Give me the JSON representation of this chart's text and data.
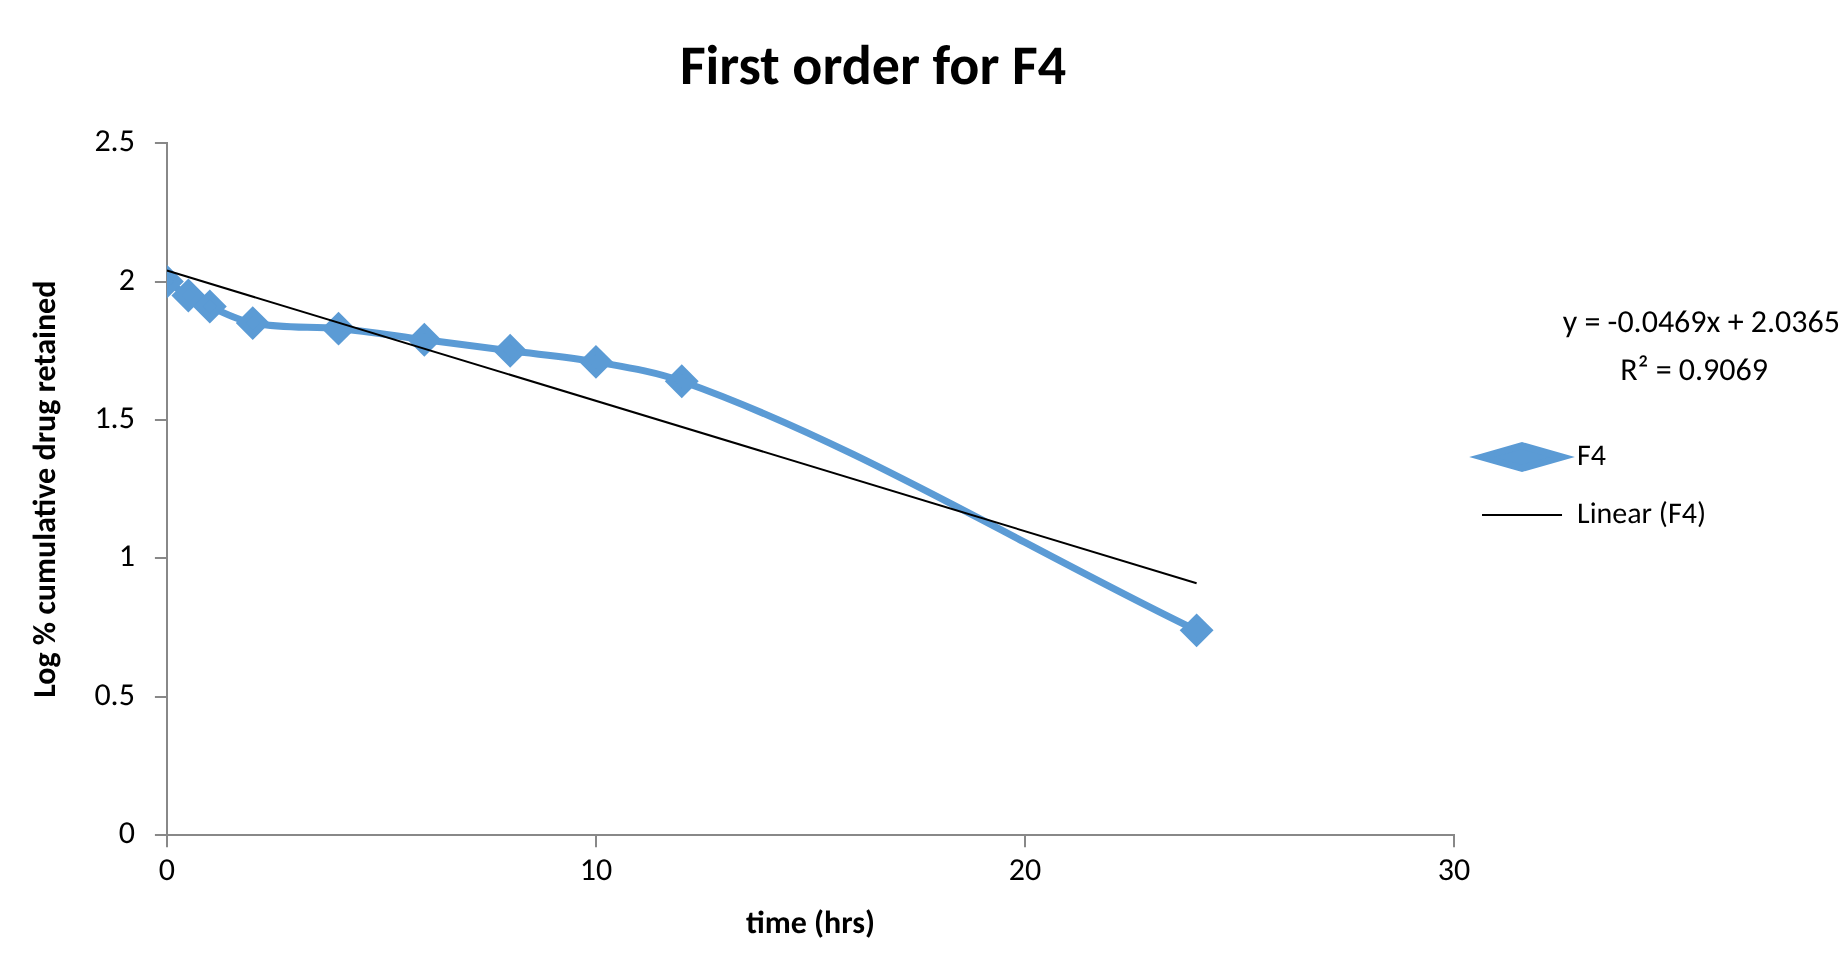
{
  "chart_data": {
    "type": "line",
    "title": "First order for F4",
    "xlabel": "time (hrs)",
    "ylabel": "Log % cumulative drug retained",
    "x": [
      0,
      0.5,
      1,
      2,
      4,
      6,
      8,
      10,
      12,
      24
    ],
    "series": [
      {
        "name": "F4",
        "color": "#5b9bd5",
        "values": [
          2.0,
          1.95,
          1.91,
          1.85,
          1.83,
          1.79,
          1.75,
          1.71,
          1.64,
          0.74
        ],
        "marker": "diamond"
      },
      {
        "name": "Linear (F4)",
        "color": "#000000",
        "type": "line",
        "x": [
          0,
          24
        ],
        "values": [
          2.04,
          0.91
        ],
        "marker": "none"
      }
    ],
    "xlim": [
      0,
      30
    ],
    "xticks": [
      0,
      10,
      20,
      30
    ],
    "ylim": [
      0,
      2.5
    ],
    "yticks": [
      0,
      0.5,
      1,
      1.5,
      2,
      2.5
    ],
    "grid": false,
    "legend": "right",
    "annotations": [
      "y = -0.0469x + 2.0365",
      "R² = 0.9069"
    ]
  }
}
